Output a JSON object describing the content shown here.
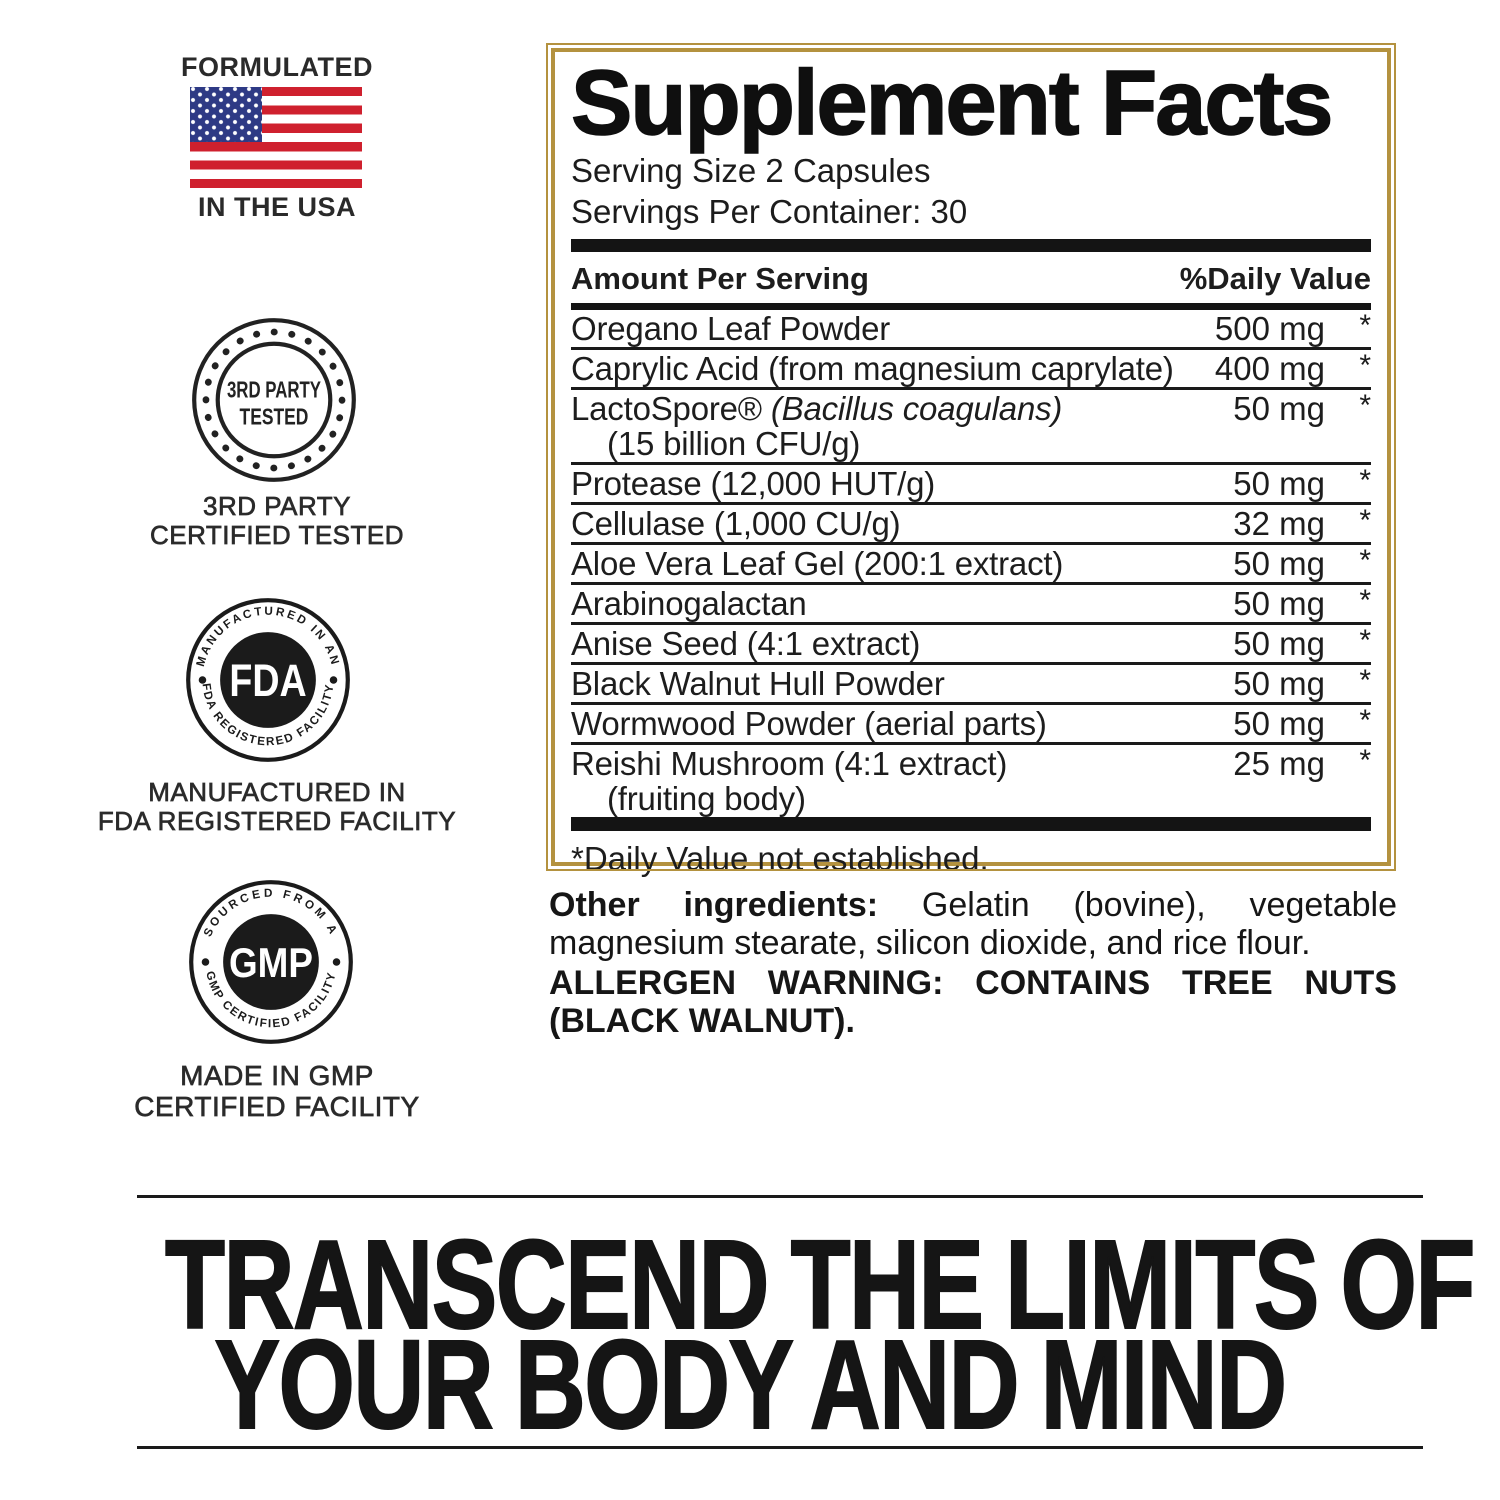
{
  "badges": {
    "usa": {
      "top_label": "FORMULATED",
      "bottom_label": "IN THE USA"
    },
    "third_party": {
      "seal_line1": "3RD PARTY",
      "seal_line2": "TESTED",
      "caption_line1": "3RD PARTY",
      "caption_line2": "CERTIFIED TESTED"
    },
    "fda": {
      "arc_top": "MANUFACTURED IN AN",
      "arc_bottom": "FDA REGISTERED FACILITY",
      "center": "FDA",
      "caption_line1": "MANUFACTURED IN",
      "caption_line2": "FDA REGISTERED FACILITY"
    },
    "gmp": {
      "arc_top": "SOURCED FROM A",
      "arc_bottom": "GMP CERTIFIED FACILITY",
      "center": "GMP",
      "caption_line1": "MADE IN GMP",
      "caption_line2": "CERTIFIED FACILITY"
    }
  },
  "panel": {
    "title": "Supplement Facts",
    "serving_size": "Serving Size 2 Capsules",
    "servings_per_container": "Servings Per Container: 30",
    "col_left": "Amount Per Serving",
    "col_right": "%Daily Value",
    "rows": [
      {
        "name": "Oregano Leaf Powder",
        "amount": "500 mg",
        "dv": "*"
      },
      {
        "name": "Caprylic Acid (from magnesium caprylate)",
        "amount": "400 mg",
        "dv": "*"
      },
      {
        "name": "LactoSpore®",
        "name_italic": "(Bacillus coagulans)",
        "name2": "(15 billion CFU/g)",
        "amount": "50 mg",
        "dv": "*"
      },
      {
        "name": "Protease (12,000 HUT/g)",
        "amount": "50 mg",
        "dv": "*"
      },
      {
        "name": "Cellulase (1,000 CU/g)",
        "amount": "32 mg",
        "dv": "*"
      },
      {
        "name": "Aloe Vera Leaf Gel (200:1 extract)",
        "amount": "50 mg",
        "dv": "*"
      },
      {
        "name": "Arabinogalactan",
        "amount": "50 mg",
        "dv": "*"
      },
      {
        "name": "Anise Seed (4:1 extract)",
        "amount": "50 mg",
        "dv": "*"
      },
      {
        "name": "Black Walnut Hull Powder",
        "amount": "50 mg",
        "dv": "*"
      },
      {
        "name": "Wormwood Powder (aerial parts)",
        "amount": "50 mg",
        "dv": "*"
      },
      {
        "name": "Reishi Mushroom (4:1 extract)",
        "name2": "(fruiting body)",
        "amount": "25 mg",
        "dv": "*"
      }
    ],
    "footnote": "*Daily Value not established."
  },
  "other_ingredients": {
    "label": "Other ingredients:",
    "text": "Gelatin (bovine), vegetable magnesium stearate, silicon dioxide, and rice flour.",
    "allergen": "ALLERGEN WARNING: CONTAINS TREE NUTS (BLACK WALNUT)."
  },
  "tagline": {
    "line1": "TRANSCEND THE LIMITS OF",
    "line2": "YOUR BODY AND MIND"
  },
  "colors": {
    "panel_border_gold": "#b4923f",
    "flag_red": "#cf202e",
    "flag_blue": "#2e3a85",
    "ink_black": "#141414"
  }
}
